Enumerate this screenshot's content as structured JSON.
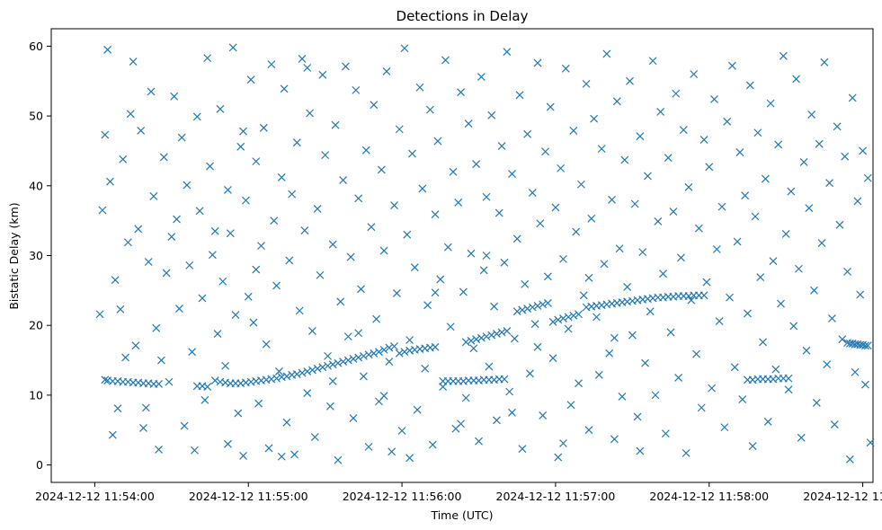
{
  "chart_data": {
    "type": "scatter",
    "title": "Detections in Delay",
    "xlabel": "Time (UTC)",
    "ylabel": "Bistatic Delay (km)",
    "marker": "x",
    "color": "#1f77b4",
    "x_unit": "seconds after 2024-12-12 11:54:00 UTC",
    "xlim": [
      -17,
      304
    ],
    "ylim": [
      -2.5,
      62.5
    ],
    "x_ticks": [
      {
        "value": 0,
        "label": "2024-12-12 11:54:00"
      },
      {
        "value": 60,
        "label": "2024-12-12 11:55:00"
      },
      {
        "value": 120,
        "label": "2024-12-12 11:56:00"
      },
      {
        "value": 180,
        "label": "2024-12-12 11:57:00"
      },
      {
        "value": 240,
        "label": "2024-12-12 11:58:00"
      },
      {
        "value": 300,
        "label": "2024-12-12 11:59:00"
      }
    ],
    "y_ticks": [
      0,
      10,
      20,
      30,
      40,
      50,
      60
    ],
    "track_segments": [
      {
        "x": [
          4,
          5,
          7,
          9,
          11,
          13,
          15,
          17,
          19,
          21,
          23,
          25
        ],
        "y": [
          12.2,
          12.1,
          12.0,
          12.0,
          11.9,
          11.9,
          11.8,
          11.8,
          11.7,
          11.7,
          11.6,
          11.6
        ]
      },
      {
        "x": [
          40,
          42,
          44
        ],
        "y": [
          11.3,
          11.3,
          11.2
        ]
      },
      {
        "x": [
          47,
          49,
          51,
          53,
          55,
          57,
          59,
          61,
          63,
          65,
          67,
          69,
          71,
          73,
          75,
          77,
          79,
          81,
          83,
          85,
          87,
          89,
          91,
          93,
          95,
          97,
          99,
          101,
          103,
          105,
          107,
          109,
          111,
          113,
          115,
          117,
          119,
          121,
          123,
          125,
          127,
          129,
          131,
          133
        ],
        "y": [
          12.1,
          11.9,
          11.8,
          11.7,
          11.7,
          11.7,
          11.8,
          11.9,
          12.0,
          12.1,
          12.2,
          12.3,
          12.4,
          12.6,
          12.7,
          12.9,
          13.0,
          13.2,
          13.4,
          13.6,
          13.8,
          14.0,
          14.2,
          14.4,
          14.6,
          14.8,
          15.0,
          15.2,
          15.4,
          15.6,
          15.8,
          16.0,
          16.2,
          16.5,
          16.8,
          17.0,
          16.0,
          16.2,
          16.4,
          16.5,
          16.6,
          16.7,
          16.8,
          16.9
        ]
      },
      {
        "x": [
          136,
          138,
          140,
          142,
          144,
          146,
          148,
          150,
          152,
          154,
          156,
          158,
          160
        ],
        "y": [
          12.0,
          12.0,
          12.0,
          12.0,
          12.0,
          12.1,
          12.1,
          12.1,
          12.2,
          12.2,
          12.2,
          12.3,
          12.3
        ]
      },
      {
        "x": [
          145,
          147,
          149,
          151,
          153,
          155,
          157,
          159,
          161
        ],
        "y": [
          17.6,
          17.8,
          18.0,
          18.2,
          18.4,
          18.6,
          18.8,
          19.0,
          19.2
        ]
      },
      {
        "x": [
          165,
          167,
          169,
          171,
          173,
          175,
          177
        ],
        "y": [
          22.0,
          22.2,
          22.4,
          22.6,
          22.8,
          23.0,
          23.2
        ]
      },
      {
        "x": [
          179,
          181,
          183,
          185,
          187,
          189
        ],
        "y": [
          20.5,
          20.8,
          21.0,
          21.2,
          21.4,
          21.6
        ]
      },
      {
        "x": [
          192,
          194,
          196,
          198,
          200,
          202,
          204,
          206,
          208,
          210,
          212,
          214,
          216,
          218,
          220,
          222,
          224,
          226,
          228,
          230,
          232,
          234,
          236,
          238
        ],
        "y": [
          22.6,
          22.7,
          22.8,
          22.9,
          23.0,
          23.1,
          23.2,
          23.3,
          23.4,
          23.5,
          23.6,
          23.7,
          23.8,
          23.9,
          24.0,
          24.0,
          24.1,
          24.1,
          24.2,
          24.2,
          24.2,
          24.3,
          24.3,
          24.3
        ]
      },
      {
        "x": [
          255,
          257,
          259,
          261,
          263,
          265,
          267,
          269,
          271
        ],
        "y": [
          12.2,
          12.2,
          12.3,
          12.3,
          12.3,
          12.3,
          12.4,
          12.4,
          12.4
        ]
      },
      {
        "x": [
          294,
          295,
          296,
          297,
          298,
          299,
          300,
          301,
          302
        ],
        "y": [
          17.5,
          17.4,
          17.4,
          17.3,
          17.3,
          17.2,
          17.2,
          17.1,
          17.1
        ]
      }
    ],
    "noise_points": [
      [
        5,
        59.5
      ],
      [
        3,
        36.5
      ],
      [
        4,
        47.3
      ],
      [
        6,
        40.6
      ],
      [
        7,
        4.3
      ],
      [
        9,
        8.1
      ],
      [
        10,
        22.3
      ],
      [
        11,
        43.8
      ],
      [
        12,
        15.4
      ],
      [
        14,
        50.3
      ],
      [
        15,
        57.8
      ],
      [
        16,
        17.1
      ],
      [
        17,
        33.8
      ],
      [
        18,
        47.9
      ],
      [
        20,
        8.2
      ],
      [
        21,
        29.1
      ],
      [
        22,
        53.5
      ],
      [
        23,
        38.5
      ],
      [
        24,
        19.6
      ],
      [
        25,
        2.2
      ],
      [
        27,
        44.1
      ],
      [
        28,
        27.5
      ],
      [
        29,
        11.9
      ],
      [
        30,
        32.7
      ],
      [
        31,
        52.8
      ],
      [
        32,
        35.2
      ],
      [
        33,
        22.4
      ],
      [
        34,
        46.9
      ],
      [
        35,
        5.6
      ],
      [
        36,
        40.1
      ],
      [
        37,
        28.6
      ],
      [
        38,
        16.2
      ],
      [
        39,
        2.1
      ],
      [
        40,
        49.9
      ],
      [
        41,
        36.4
      ],
      [
        42,
        23.9
      ],
      [
        43,
        9.3
      ],
      [
        44,
        58.3
      ],
      [
        45,
        42.8
      ],
      [
        46,
        30.1
      ],
      [
        48,
        18.8
      ],
      [
        49,
        51.0
      ],
      [
        50,
        26.3
      ],
      [
        51,
        14.2
      ],
      [
        52,
        39.4
      ],
      [
        53,
        33.2
      ],
      [
        54,
        59.8
      ],
      [
        55,
        21.5
      ],
      [
        56,
        7.4
      ],
      [
        57,
        45.6
      ],
      [
        58,
        1.3
      ],
      [
        59,
        37.9
      ],
      [
        60,
        24.1
      ],
      [
        61,
        55.2
      ],
      [
        62,
        20.4
      ],
      [
        63,
        43.5
      ],
      [
        64,
        8.8
      ],
      [
        65,
        31.4
      ],
      [
        66,
        48.3
      ],
      [
        67,
        17.3
      ],
      [
        68,
        2.4
      ],
      [
        69,
        57.4
      ],
      [
        70,
        35.0
      ],
      [
        71,
        25.7
      ],
      [
        72,
        13.4
      ],
      [
        73,
        41.2
      ],
      [
        74,
        53.9
      ],
      [
        75,
        6.1
      ],
      [
        76,
        29.3
      ],
      [
        77,
        38.8
      ],
      [
        78,
        1.5
      ],
      [
        79,
        46.2
      ],
      [
        80,
        22.1
      ],
      [
        81,
        58.2
      ],
      [
        82,
        33.6
      ],
      [
        83,
        10.3
      ],
      [
        84,
        50.4
      ],
      [
        85,
        19.2
      ],
      [
        86,
        4.0
      ],
      [
        87,
        36.7
      ],
      [
        88,
        27.2
      ],
      [
        89,
        55.9
      ],
      [
        90,
        44.4
      ],
      [
        91,
        15.6
      ],
      [
        92,
        8.4
      ],
      [
        93,
        31.6
      ],
      [
        94,
        48.7
      ],
      [
        95,
        0.7
      ],
      [
        96,
        23.4
      ],
      [
        97,
        40.8
      ],
      [
        98,
        57.1
      ],
      [
        99,
        18.4
      ],
      [
        100,
        29.8
      ],
      [
        101,
        6.7
      ],
      [
        102,
        53.7
      ],
      [
        103,
        38.2
      ],
      [
        104,
        25.2
      ],
      [
        105,
        12.7
      ],
      [
        106,
        45.1
      ],
      [
        107,
        2.6
      ],
      [
        108,
        34.1
      ],
      [
        109,
        51.6
      ],
      [
        110,
        20.9
      ],
      [
        111,
        9.1
      ],
      [
        112,
        42.3
      ],
      [
        113,
        30.7
      ],
      [
        114,
        56.4
      ],
      [
        115,
        14.8
      ],
      [
        116,
        1.9
      ],
      [
        117,
        37.2
      ],
      [
        118,
        24.6
      ],
      [
        119,
        48.1
      ],
      [
        120,
        4.9
      ],
      [
        121,
        59.7
      ],
      [
        122,
        33.0
      ],
      [
        123,
        17.9
      ],
      [
        124,
        44.6
      ],
      [
        125,
        28.3
      ],
      [
        126,
        7.9
      ],
      [
        127,
        54.1
      ],
      [
        128,
        39.6
      ],
      [
        129,
        13.8
      ],
      [
        130,
        22.9
      ],
      [
        131,
        50.9
      ],
      [
        132,
        2.9
      ],
      [
        133,
        35.9
      ],
      [
        134,
        46.4
      ],
      [
        135,
        26.6
      ],
      [
        136,
        11.2
      ],
      [
        137,
        58.0
      ],
      [
        138,
        31.2
      ],
      [
        139,
        19.8
      ],
      [
        140,
        42.0
      ],
      [
        141,
        5.2
      ],
      [
        142,
        37.6
      ],
      [
        143,
        53.4
      ],
      [
        144,
        24.8
      ],
      [
        145,
        9.6
      ],
      [
        146,
        48.9
      ],
      [
        147,
        30.3
      ],
      [
        148,
        16.7
      ],
      [
        149,
        43.1
      ],
      [
        150,
        3.4
      ],
      [
        151,
        55.6
      ],
      [
        152,
        27.9
      ],
      [
        153,
        38.4
      ],
      [
        154,
        14.1
      ],
      [
        155,
        50.1
      ],
      [
        156,
        22.7
      ],
      [
        157,
        6.4
      ],
      [
        158,
        36.1
      ],
      [
        159,
        45.7
      ],
      [
        160,
        29.0
      ],
      [
        161,
        59.2
      ],
      [
        162,
        10.5
      ],
      [
        163,
        41.7
      ],
      [
        164,
        18.1
      ],
      [
        165,
        32.4
      ],
      [
        166,
        53.0
      ],
      [
        167,
        2.3
      ],
      [
        168,
        25.9
      ],
      [
        169,
        47.4
      ],
      [
        170,
        13.1
      ],
      [
        171,
        39.0
      ],
      [
        172,
        20.2
      ],
      [
        173,
        57.6
      ],
      [
        174,
        34.6
      ],
      [
        175,
        7.1
      ],
      [
        176,
        44.9
      ],
      [
        177,
        27.0
      ],
      [
        178,
        51.3
      ],
      [
        179,
        15.3
      ],
      [
        180,
        36.9
      ],
      [
        181,
        1.1
      ],
      [
        182,
        42.5
      ],
      [
        183,
        29.5
      ],
      [
        184,
        56.8
      ],
      [
        185,
        19.5
      ],
      [
        186,
        8.6
      ],
      [
        187,
        47.9
      ],
      [
        188,
        33.4
      ],
      [
        189,
        11.7
      ],
      [
        190,
        40.2
      ],
      [
        191,
        24.3
      ],
      [
        192,
        54.6
      ],
      [
        193,
        5.0
      ],
      [
        194,
        35.3
      ],
      [
        195,
        49.6
      ],
      [
        196,
        21.2
      ],
      [
        197,
        12.9
      ],
      [
        198,
        45.3
      ],
      [
        199,
        28.8
      ],
      [
        200,
        58.9
      ],
      [
        201,
        16.0
      ],
      [
        202,
        38.0
      ],
      [
        203,
        3.7
      ],
      [
        204,
        52.1
      ],
      [
        205,
        31.0
      ],
      [
        206,
        9.8
      ],
      [
        207,
        43.7
      ],
      [
        208,
        25.5
      ],
      [
        209,
        55.0
      ],
      [
        210,
        18.6
      ],
      [
        211,
        37.4
      ],
      [
        212,
        6.9
      ],
      [
        213,
        47.1
      ],
      [
        214,
        30.5
      ],
      [
        215,
        14.6
      ],
      [
        216,
        41.4
      ],
      [
        217,
        22.0
      ],
      [
        218,
        57.9
      ],
      [
        219,
        10.0
      ],
      [
        220,
        34.9
      ],
      [
        221,
        50.6
      ],
      [
        222,
        27.4
      ],
      [
        223,
        4.5
      ],
      [
        224,
        44.0
      ],
      [
        225,
        19.0
      ],
      [
        226,
        36.3
      ],
      [
        227,
        53.2
      ],
      [
        228,
        12.5
      ],
      [
        229,
        29.7
      ],
      [
        230,
        48.0
      ],
      [
        231,
        1.7
      ],
      [
        232,
        39.8
      ],
      [
        233,
        23.6
      ],
      [
        234,
        56.0
      ],
      [
        235,
        15.9
      ],
      [
        236,
        33.9
      ],
      [
        237,
        8.2
      ],
      [
        238,
        46.6
      ],
      [
        239,
        26.2
      ],
      [
        240,
        42.7
      ],
      [
        241,
        11.0
      ],
      [
        242,
        52.4
      ],
      [
        243,
        30.9
      ],
      [
        244,
        20.6
      ],
      [
        245,
        37.0
      ],
      [
        246,
        5.4
      ],
      [
        247,
        49.2
      ],
      [
        248,
        24.0
      ],
      [
        249,
        57.2
      ],
      [
        250,
        14.0
      ],
      [
        251,
        32.0
      ],
      [
        252,
        44.8
      ],
      [
        253,
        9.4
      ],
      [
        254,
        38.6
      ],
      [
        255,
        21.7
      ],
      [
        256,
        54.4
      ],
      [
        257,
        2.7
      ],
      [
        258,
        35.6
      ],
      [
        259,
        47.6
      ],
      [
        260,
        26.9
      ],
      [
        261,
        17.6
      ],
      [
        262,
        41.0
      ],
      [
        263,
        6.2
      ],
      [
        264,
        51.8
      ],
      [
        265,
        29.2
      ],
      [
        266,
        13.7
      ],
      [
        267,
        45.9
      ],
      [
        268,
        23.1
      ],
      [
        269,
        58.6
      ],
      [
        270,
        33.1
      ],
      [
        271,
        10.8
      ],
      [
        272,
        39.2
      ],
      [
        273,
        19.9
      ],
      [
        274,
        55.3
      ],
      [
        275,
        28.1
      ],
      [
        276,
        3.9
      ],
      [
        277,
        43.4
      ],
      [
        278,
        16.4
      ],
      [
        279,
        36.8
      ],
      [
        280,
        50.2
      ],
      [
        281,
        25.0
      ],
      [
        282,
        8.9
      ],
      [
        283,
        46.0
      ],
      [
        284,
        31.8
      ],
      [
        285,
        57.7
      ],
      [
        286,
        14.4
      ],
      [
        287,
        40.4
      ],
      [
        288,
        21.0
      ],
      [
        289,
        5.8
      ],
      [
        290,
        48.5
      ],
      [
        291,
        34.4
      ],
      [
        292,
        18.0
      ],
      [
        293,
        44.2
      ],
      [
        294,
        27.7
      ],
      [
        295,
        0.8
      ],
      [
        296,
        52.6
      ],
      [
        297,
        13.3
      ],
      [
        298,
        37.8
      ],
      [
        299,
        24.4
      ],
      [
        300,
        45.0
      ],
      [
        301,
        11.5
      ],
      [
        302,
        41.1
      ],
      [
        303,
        3.2
      ],
      [
        2,
        21.6
      ],
      [
        8,
        26.5
      ],
      [
        13,
        31.9
      ],
      [
        19,
        5.3
      ],
      [
        26,
        15.0
      ],
      [
        47,
        33.5
      ],
      [
        52,
        3.0
      ],
      [
        58,
        47.8
      ],
      [
        63,
        28.0
      ],
      [
        73,
        1.2
      ],
      [
        83,
        56.9
      ],
      [
        93,
        12.0
      ],
      [
        103,
        18.9
      ],
      [
        113,
        9.9
      ],
      [
        123,
        1.0
      ],
      [
        133,
        24.7
      ],
      [
        143,
        5.9
      ],
      [
        153,
        30.0
      ],
      [
        163,
        7.5
      ],
      [
        173,
        16.9
      ],
      [
        183,
        3.1
      ],
      [
        193,
        26.8
      ],
      [
        203,
        18.2
      ],
      [
        213,
        2.0
      ]
    ]
  }
}
